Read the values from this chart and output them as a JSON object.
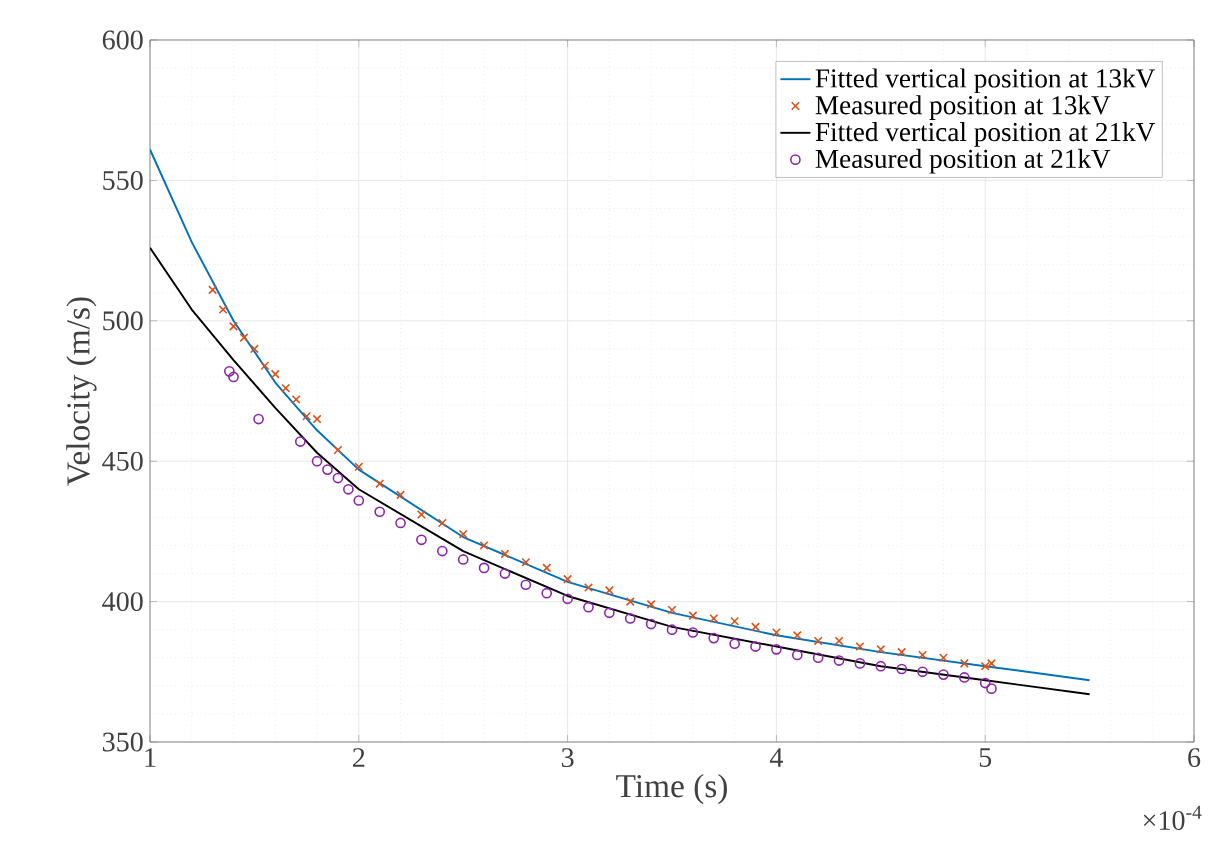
{
  "chart_data": {
    "type": "line",
    "xlabel": "Time (s)",
    "ylabel": "Velocity (m/s)",
    "xlim": [
      1,
      6
    ],
    "ylim": [
      350,
      600
    ],
    "xticks": [
      1,
      2,
      3,
      4,
      5,
      6
    ],
    "yticks": [
      350,
      400,
      450,
      500,
      550,
      600
    ],
    "grid": true,
    "legend": "top right",
    "annotations": [
      "×10$^{-4}$"
    ],
    "series": [
      {
        "name": "Fitted vertical position at 13kV",
        "marker": "none",
        "color": "#0072bd",
        "x": [
          1,
          1.2,
          1.4,
          1.6,
          1.8,
          2,
          2.5,
          3,
          3.5,
          4,
          4.5,
          5,
          5.5
        ],
        "values": [
          561,
          528,
          500,
          478,
          461,
          447,
          423,
          407,
          396,
          388,
          382,
          377,
          372
        ]
      },
      {
        "name": "Measured position at 13kV",
        "type": "scatter",
        "marker": "cross",
        "color": "#d95319",
        "x": [
          1.3,
          1.35,
          1.4,
          1.45,
          1.5,
          1.55,
          1.6,
          1.65,
          1.7,
          1.75,
          1.8,
          1.9,
          2,
          2.1,
          2.2,
          2.3,
          2.4,
          2.5,
          2.6,
          2.7,
          2.8,
          2.9,
          3,
          3.1,
          3.2,
          3.3,
          3.4,
          3.5,
          3.6,
          3.7,
          3.8,
          3.9,
          4,
          4.1,
          4.2,
          4.3,
          4.4,
          4.5,
          4.6,
          4.7,
          4.8,
          4.9,
          5,
          5.03
        ],
        "values": [
          511,
          504,
          498,
          494,
          490,
          484,
          481,
          476,
          472,
          466,
          465,
          454,
          448,
          442,
          438,
          431,
          428,
          424,
          420,
          417,
          414,
          412,
          408,
          405,
          404,
          400,
          399,
          397,
          395,
          394,
          393,
          391,
          389,
          388,
          386,
          386,
          384,
          383,
          382,
          381,
          380,
          378,
          377,
          378
        ]
      },
      {
        "name": "Fitted vertical position at 21kV",
        "marker": "none",
        "color": "#000000",
        "x": [
          1,
          1.2,
          1.4,
          1.6,
          1.8,
          2,
          2.5,
          3,
          3.5,
          4,
          4.5,
          5,
          5.5
        ],
        "values": [
          526,
          504,
          486,
          469,
          453,
          440,
          418,
          402,
          391,
          384,
          377,
          372,
          367
        ]
      },
      {
        "name": "Measured position at 21kV",
        "type": "scatter",
        "marker": "circle",
        "color": "#8e24aa",
        "x": [
          1.38,
          1.4,
          1.52,
          1.72,
          1.8,
          1.85,
          1.9,
          1.95,
          2,
          2.1,
          2.2,
          2.3,
          2.4,
          2.5,
          2.6,
          2.7,
          2.8,
          2.9,
          3,
          3.1,
          3.2,
          3.3,
          3.4,
          3.5,
          3.6,
          3.7,
          3.8,
          3.9,
          4,
          4.1,
          4.2,
          4.3,
          4.4,
          4.5,
          4.6,
          4.7,
          4.8,
          4.9,
          5,
          5.03
        ],
        "values": [
          482,
          480,
          465,
          457,
          450,
          447,
          444,
          440,
          436,
          432,
          428,
          422,
          418,
          415,
          412,
          410,
          406,
          403,
          401,
          398,
          396,
          394,
          392,
          390,
          389,
          387,
          385,
          384,
          383,
          381,
          380,
          379,
          378,
          377,
          376,
          375,
          374,
          373,
          371,
          369
        ]
      }
    ]
  }
}
